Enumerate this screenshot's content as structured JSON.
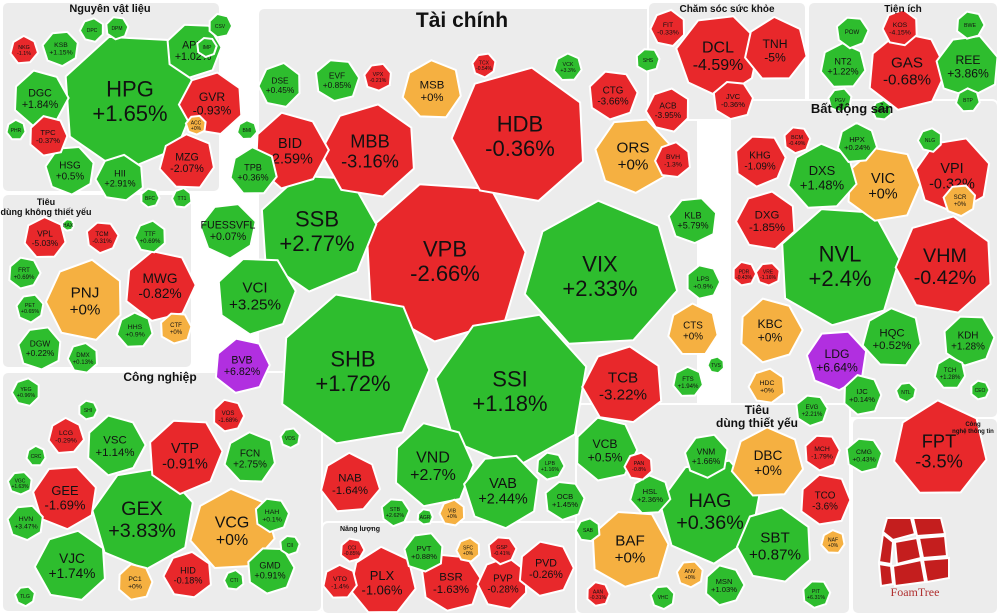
{
  "colors": {
    "up": "#2ebd2e",
    "down": "#e8282b",
    "flat": "#f5b041",
    "ceiling": "#b12fe0",
    "floor": "#27b4e0",
    "border": "#ffffff",
    "group_bg": "#ececec"
  },
  "chart_data": {
    "type": "treemap",
    "groups": [
      {
        "name": "Tài chính",
        "items": [
          {
            "ticker": "VPB",
            "change": "-2.66%"
          },
          {
            "ticker": "HDB",
            "change": "-0.36%"
          },
          {
            "ticker": "SHB",
            "change": "+1.72%"
          },
          {
            "ticker": "SSI",
            "change": "+1.18%"
          },
          {
            "ticker": "VIX",
            "change": "+2.33%"
          },
          {
            "ticker": "SSB",
            "change": "+2.77%"
          },
          {
            "ticker": "MBB",
            "change": "-3.16%"
          },
          {
            "ticker": "BID",
            "change": "-2.59%"
          },
          {
            "ticker": "ORS",
            "change": "+0%"
          },
          {
            "ticker": "MSB",
            "change": "+0%"
          },
          {
            "ticker": "VCI",
            "change": "+3.25%"
          },
          {
            "ticker": "TCB",
            "change": "-3.22%"
          },
          {
            "ticker": "VND",
            "change": "+2.7%"
          },
          {
            "ticker": "VAB",
            "change": "+2.44%"
          },
          {
            "ticker": "NAB",
            "change": "-1.64%"
          },
          {
            "ticker": "CTG",
            "change": "-3.66%"
          },
          {
            "ticker": "ACB",
            "change": "-3.95%"
          },
          {
            "ticker": "VCB",
            "change": "+0.5%"
          },
          {
            "ticker": "KLB",
            "change": "+5.79%"
          },
          {
            "ticker": "CTS",
            "change": "+0%"
          },
          {
            "ticker": "OCB",
            "change": "+1.45%"
          },
          {
            "ticker": "BVH",
            "change": "-1.3%"
          },
          {
            "ticker": "LPS",
            "change": "+0.9%"
          },
          {
            "ticker": "FUESSVFL",
            "change": "+0.07%"
          },
          {
            "ticker": "TPB",
            "change": "+0.36%"
          },
          {
            "ticker": "EVF",
            "change": "+0.85%"
          },
          {
            "ticker": "DSE",
            "change": "+0.45%"
          },
          {
            "ticker": "BVB",
            "change": "+6.82%"
          },
          {
            "ticker": "VPX",
            "change": "-0.21%"
          },
          {
            "ticker": "FTS",
            "change": "+1.94%"
          },
          {
            "ticker": "STB",
            "change": "+2.62%"
          },
          {
            "ticker": "VIB",
            "change": "+0%"
          },
          {
            "ticker": "LPB",
            "change": "+1.16%"
          },
          {
            "ticker": "TCX",
            "change": "-0.54%"
          },
          {
            "ticker": "VCK",
            "change": "+3.3%"
          },
          {
            "ticker": "SHS",
            "change": ""
          },
          {
            "ticker": "TVS",
            "change": ""
          },
          {
            "ticker": "AGR",
            "change": ""
          },
          {
            "ticker": "VDS",
            "change": ""
          },
          {
            "ticker": "BMI",
            "change": ""
          }
        ]
      },
      {
        "name": "Nguyên vật liệu",
        "items": [
          {
            "ticker": "HPG",
            "change": "+1.65%"
          },
          {
            "ticker": "GVR",
            "change": "-0.93%"
          },
          {
            "ticker": "DGC",
            "change": "+1.84%"
          },
          {
            "ticker": "HSG",
            "change": "+0.5%"
          },
          {
            "ticker": "MZG",
            "change": "-2.07%"
          },
          {
            "ticker": "APH",
            "change": "+1.02%"
          },
          {
            "ticker": "HII",
            "change": "+2.91%"
          },
          {
            "ticker": "TPC",
            "change": "-0.37%"
          },
          {
            "ticker": "KSB",
            "change": "+1.15%"
          },
          {
            "ticker": "NKG",
            "change": "-1.1%"
          },
          {
            "ticker": "DPM",
            "change": ""
          },
          {
            "ticker": "DPC",
            "change": ""
          },
          {
            "ticker": "CSV",
            "change": ""
          },
          {
            "ticker": "ACC",
            "change": "+0%"
          },
          {
            "ticker": "PHR",
            "change": ""
          },
          {
            "ticker": "IMP",
            "change": ""
          },
          {
            "ticker": "TT1",
            "change": ""
          },
          {
            "ticker": "BFC",
            "change": ""
          }
        ]
      },
      {
        "name": "Chăm sóc sức khỏe",
        "items": [
          {
            "ticker": "DCL",
            "change": "-4.59%"
          },
          {
            "ticker": "TNH",
            "change": "-5%"
          },
          {
            "ticker": "JVC",
            "change": "-0.36%"
          },
          {
            "ticker": "FIT",
            "change": "-0.33%"
          }
        ]
      },
      {
        "name": "Tiện ích",
        "items": [
          {
            "ticker": "GAS",
            "change": "-0.68%"
          },
          {
            "ticker": "REE",
            "change": "+3.86%"
          },
          {
            "ticker": "NT2",
            "change": "+1.22%"
          },
          {
            "ticker": "POW",
            "change": ""
          },
          {
            "ticker": "KOS",
            "change": "-4.15%"
          },
          {
            "ticker": "BWE",
            "change": ""
          },
          {
            "ticker": "PGV",
            "change": ""
          },
          {
            "ticker": "BTP",
            "change": ""
          }
        ]
      },
      {
        "name": "Bất động sản",
        "items": [
          {
            "ticker": "NVL",
            "change": "+2.4%"
          },
          {
            "ticker": "VHM",
            "change": "-0.42%"
          },
          {
            "ticker": "VIC",
            "change": "+0%"
          },
          {
            "ticker": "VPI",
            "change": "-0.32%"
          },
          {
            "ticker": "DXS",
            "change": "+1.48%"
          },
          {
            "ticker": "KHG",
            "change": "-1.09%"
          },
          {
            "ticker": "DXG",
            "change": "-1.85%"
          },
          {
            "ticker": "KBC",
            "change": "+0%"
          },
          {
            "ticker": "LDG",
            "change": "+6.64%"
          },
          {
            "ticker": "HQC",
            "change": "+0.52%"
          },
          {
            "ticker": "KDH",
            "change": "+1.28%"
          },
          {
            "ticker": "HDC",
            "change": "+0%"
          },
          {
            "ticker": "IJC",
            "change": "+0.14%"
          },
          {
            "ticker": "SCR",
            "change": "+0%"
          },
          {
            "ticker": "HPX",
            "change": "+0.24%"
          },
          {
            "ticker": "BCM",
            "change": "-0.49%"
          },
          {
            "ticker": "NLG",
            "change": ""
          },
          {
            "ticker": "PDR",
            "change": "-0.43%"
          },
          {
            "ticker": "VRE",
            "change": "-1.16%"
          },
          {
            "ticker": "TCH",
            "change": "+1.28%"
          },
          {
            "ticker": "EVG",
            "change": "+2.21%"
          },
          {
            "ticker": "DIG",
            "change": ""
          },
          {
            "ticker": "CEO",
            "change": ""
          },
          {
            "ticker": "NTL",
            "change": ""
          }
        ]
      },
      {
        "name": "Công nghệ thông tin",
        "items": [
          {
            "ticker": "FPT",
            "change": "-3.5%"
          },
          {
            "ticker": "CMG",
            "change": "+0.43%"
          }
        ]
      },
      {
        "name": "Tiêu dùng không thiết yếu",
        "items": [
          {
            "ticker": "PNJ",
            "change": "+0%"
          },
          {
            "ticker": "MWG",
            "change": "-0.82%"
          },
          {
            "ticker": "DGW",
            "change": "+0.22%"
          },
          {
            "ticker": "VPL",
            "change": "-5.03%"
          },
          {
            "ticker": "TCM",
            "change": "-0.31%"
          },
          {
            "ticker": "TTF",
            "change": "+0.69%"
          },
          {
            "ticker": "FRT",
            "change": "+0.69%"
          },
          {
            "ticker": "PET",
            "change": "+0.65%"
          },
          {
            "ticker": "HHS",
            "change": "+0.9%"
          },
          {
            "ticker": "CTF",
            "change": "+0%"
          },
          {
            "ticker": "DMX",
            "change": "+0.13%"
          },
          {
            "ticker": "HAX",
            "change": ""
          }
        ]
      },
      {
        "name": "Công nghiệp",
        "items": [
          {
            "ticker": "GEX",
            "change": "+3.83%"
          },
          {
            "ticker": "VCG",
            "change": "+0%"
          },
          {
            "ticker": "VTP",
            "change": "-0.91%"
          },
          {
            "ticker": "VJC",
            "change": "+1.74%"
          },
          {
            "ticker": "VSC",
            "change": "+1.14%"
          },
          {
            "ticker": "GEE",
            "change": "-1.69%"
          },
          {
            "ticker": "FCN",
            "change": "+2.75%"
          },
          {
            "ticker": "GMD",
            "change": "+0.91%"
          },
          {
            "ticker": "HID",
            "change": "-0.18%"
          },
          {
            "ticker": "PC1",
            "change": "+0%"
          },
          {
            "ticker": "HVN",
            "change": "+3.47%"
          },
          {
            "ticker": "LCG",
            "change": "-0.29%"
          },
          {
            "ticker": "HAH",
            "change": "+0.1%"
          },
          {
            "ticker": "YEG",
            "change": "+0.96%"
          },
          {
            "ticker": "VOS",
            "change": "-1.68%"
          },
          {
            "ticker": "VGC",
            "change": "+1.63%"
          },
          {
            "ticker": "CRC",
            "change": ""
          },
          {
            "ticker": "CII",
            "change": ""
          },
          {
            "ticker": "CTI",
            "change": ""
          },
          {
            "ticker": "SHI",
            "change": ""
          },
          {
            "ticker": "TLG",
            "change": ""
          }
        ]
      },
      {
        "name": "Năng lượng",
        "items": [
          {
            "ticker": "PLX",
            "change": "-1.06%"
          },
          {
            "ticker": "BSR",
            "change": "-1.63%"
          },
          {
            "ticker": "PVP",
            "change": "-0.28%"
          },
          {
            "ticker": "PVD",
            "change": "-0.26%"
          },
          {
            "ticker": "PVT",
            "change": "+0.88%"
          },
          {
            "ticker": "VTO",
            "change": "-1.4%"
          },
          {
            "ticker": "GSP",
            "change": "-0.41%"
          },
          {
            "ticker": "SFC",
            "change": "+0%"
          },
          {
            "ticker": "CCI",
            "change": "-0.85%"
          }
        ]
      },
      {
        "name": "Tiêu dùng thiết yếu",
        "items": [
          {
            "ticker": "HAG",
            "change": "+0.36%"
          },
          {
            "ticker": "DBC",
            "change": "+0%"
          },
          {
            "ticker": "BAF",
            "change": "+0%"
          },
          {
            "ticker": "SBT",
            "change": "+0.87%"
          },
          {
            "ticker": "TCO",
            "change": "-3.6%"
          },
          {
            "ticker": "VNM",
            "change": "+1.66%"
          },
          {
            "ticker": "HSL",
            "change": "+2.36%"
          },
          {
            "ticker": "MCH",
            "change": "-1.79%"
          },
          {
            "ticker": "PAN",
            "change": "-0.8%"
          },
          {
            "ticker": "MSN",
            "change": "+1.03%"
          },
          {
            "ticker": "ANV",
            "change": "+0%"
          },
          {
            "ticker": "NAF",
            "change": "+0%"
          },
          {
            "ticker": "PIT",
            "change": "+6.31%"
          },
          {
            "ticker": "SAB",
            "change": ""
          },
          {
            "ticker": "AAN",
            "change": "-0.31%"
          },
          {
            "ticker": "VHC",
            "change": ""
          }
        ]
      }
    ]
  },
  "branding": {
    "logo_text": "FoamTree"
  }
}
